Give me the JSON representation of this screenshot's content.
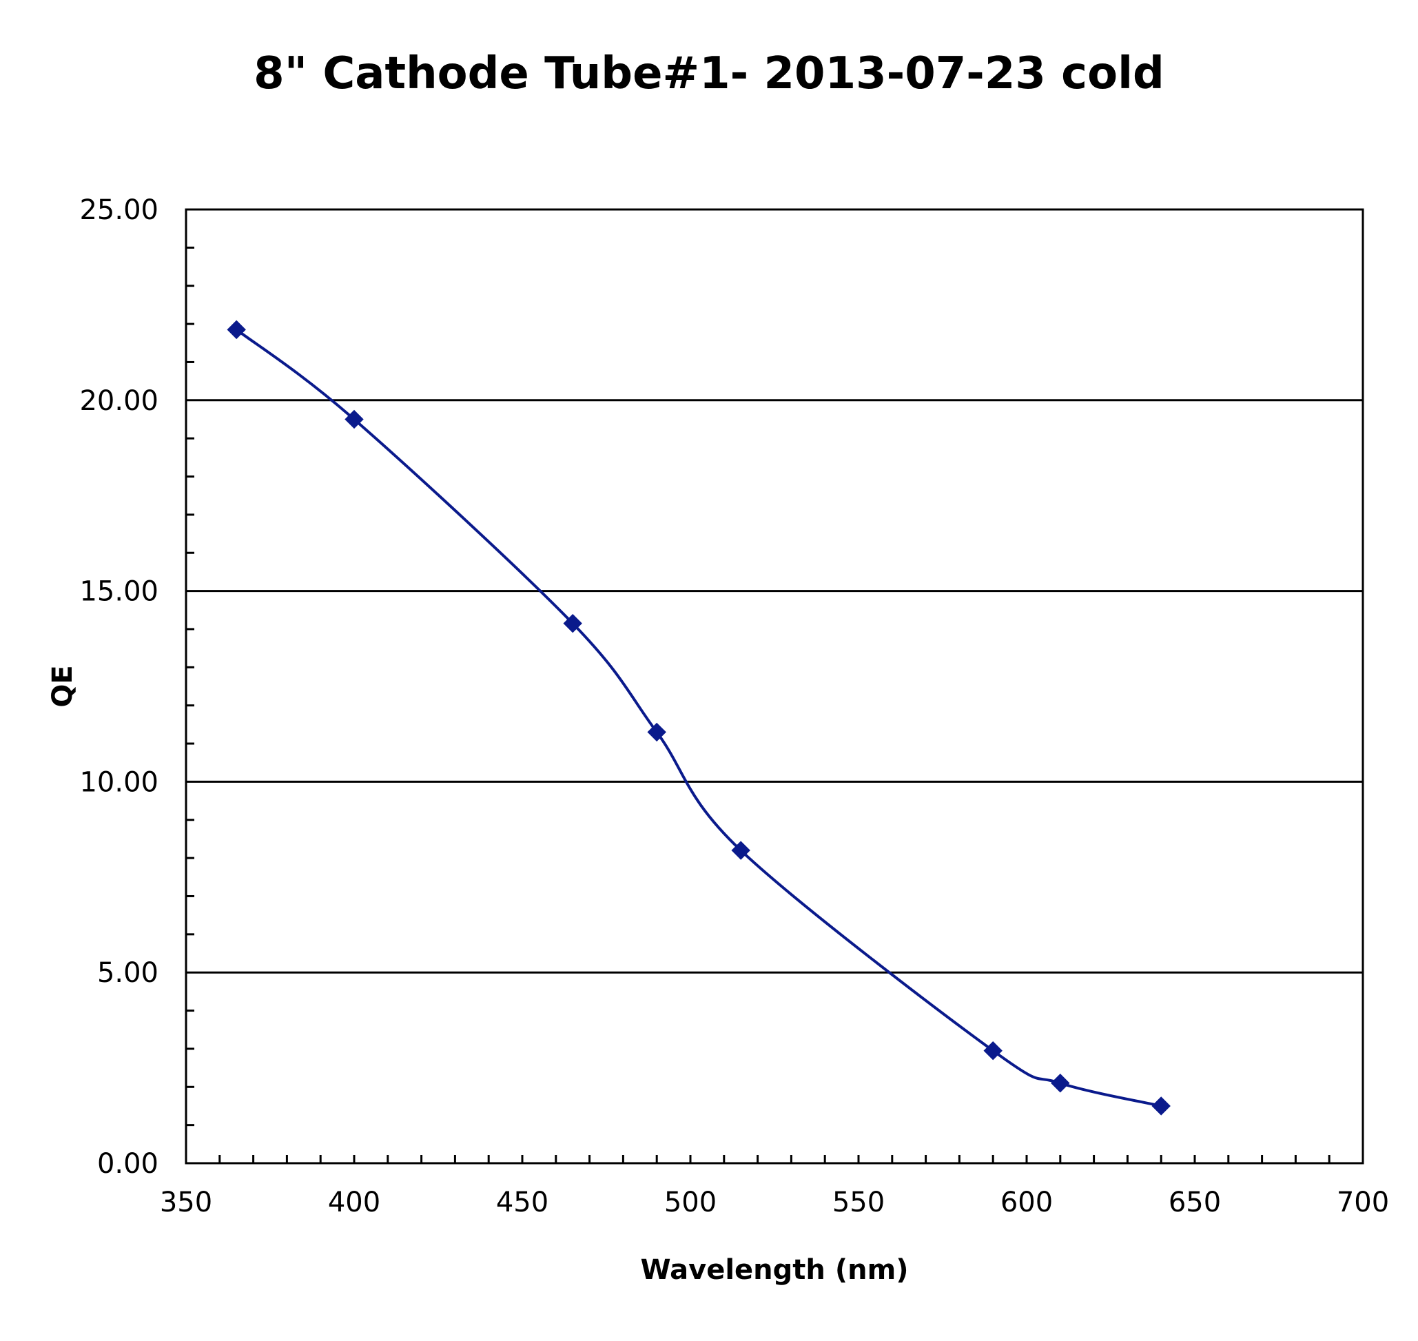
{
  "chart_data": {
    "type": "line",
    "title": "8\" Cathode Tube#1- 2013-07-23 cold",
    "xlabel": "Wavelength (nm)",
    "ylabel": "QE",
    "xlim": [
      350,
      700
    ],
    "ylim": [
      0,
      25
    ],
    "x_ticks": [
      350,
      400,
      450,
      500,
      550,
      600,
      650,
      700
    ],
    "x_tick_labels": [
      "350",
      "400",
      "450",
      "500",
      "550",
      "600",
      "650",
      "700"
    ],
    "y_ticks": [
      0,
      5,
      10,
      15,
      20,
      25
    ],
    "y_tick_labels": [
      "0.00",
      "5.00",
      "10.00",
      "15.00",
      "20.00",
      "25.00"
    ],
    "grid": "horizontal major",
    "legend": "none",
    "series": [
      {
        "marker": "diamond",
        "color": "#0a1a8c",
        "smooth": true,
        "x": [
          365,
          400,
          465,
          490,
          515,
          590,
          610,
          640
        ],
        "y": [
          21.85,
          19.5,
          14.15,
          11.3,
          8.2,
          2.95,
          2.1,
          1.5
        ]
      }
    ]
  }
}
